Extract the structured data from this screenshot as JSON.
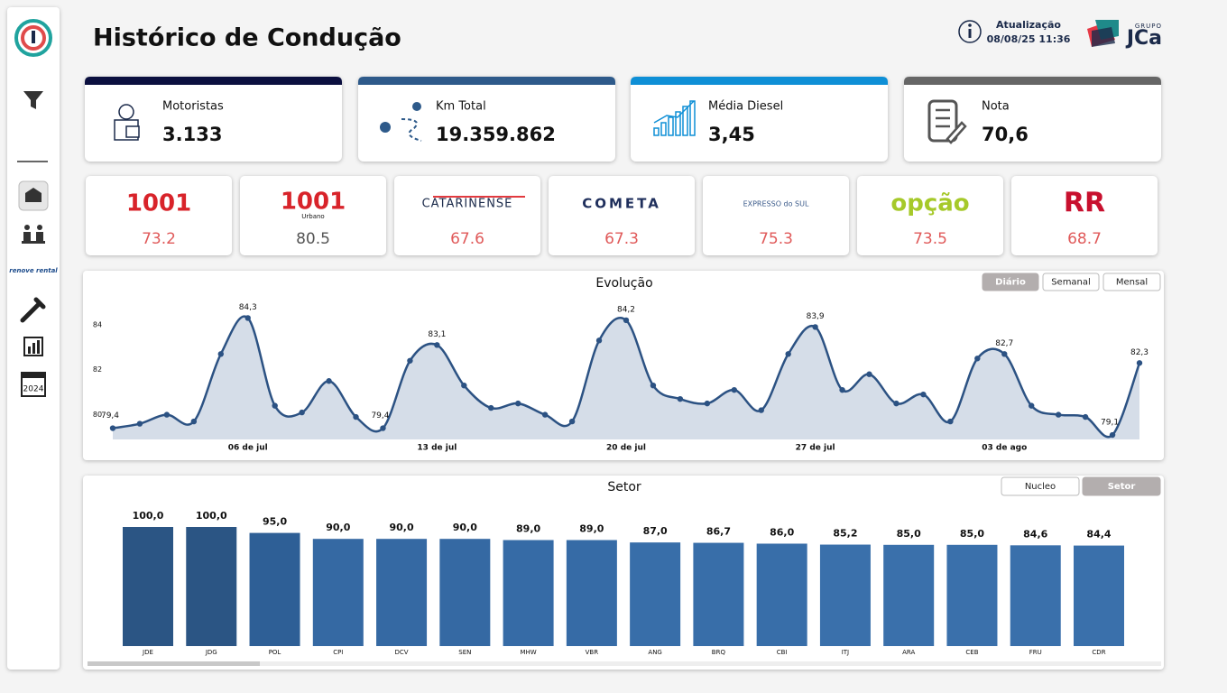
{
  "header": {
    "title": "Histórico de Condução",
    "update_label": "Atualização",
    "update_time": "08/08/25 11:36",
    "logo_small": "GRUPO",
    "logo": "JCa"
  },
  "sidebar": {
    "nav_text": "renove rental"
  },
  "kpis": [
    {
      "label": "Motoristas",
      "value": "3.133",
      "color": "#0b0f3f"
    },
    {
      "label": "Km Total",
      "value": "19.359.862",
      "color": "#2e5a8a"
    },
    {
      "label": "Média Diesel",
      "value": "3,45",
      "color": "#0e8fd6"
    },
    {
      "label": "Nota",
      "value": "70,6",
      "color": "#666666"
    }
  ],
  "brands": [
    {
      "name": "1001",
      "score": 73.2,
      "logo_color": "#d8232a",
      "score_color": "#e05a5a"
    },
    {
      "name": "1001",
      "sub": "Urbano",
      "score": 80.5,
      "logo_color": "#d8232a",
      "score_color": "#555555"
    },
    {
      "name": "CATARINENSE",
      "score": 67.6,
      "logo_color": "#1b2a4a",
      "score_color": "#e05a5a"
    },
    {
      "name": "COMETA",
      "score": 67.3,
      "logo_color": "#1f2f5c",
      "score_color": "#e05a5a"
    },
    {
      "name": "EXPRESSO do SUL",
      "score": 75.3,
      "logo_color": "#3a5a8a",
      "score_color": "#e05a5a"
    },
    {
      "name": "opção",
      "score": 73.5,
      "logo_color": "#a6c92a",
      "score_color": "#e05a5a"
    },
    {
      "name": "RR",
      "score": 68.7,
      "logo_color": "#c8102e",
      "score_color": "#e05a5a"
    }
  ],
  "chart_data": [
    {
      "type": "line",
      "title": "Evolução",
      "categories": [
        null,
        null,
        null,
        null,
        null,
        "06 de jul",
        null,
        null,
        null,
        null,
        null,
        null,
        "13 de jul",
        null,
        null,
        null,
        null,
        null,
        null,
        "20 de jul",
        null,
        null,
        null,
        null,
        null,
        null,
        "27 de jul",
        null,
        null,
        null,
        null,
        null,
        null,
        "03 de ago",
        null,
        null,
        null,
        null,
        null
      ],
      "values": [
        79.4,
        79.6,
        80.0,
        79.7,
        82.7,
        84.3,
        80.4,
        80.1,
        81.5,
        79.9,
        79.4,
        82.4,
        83.1,
        81.3,
        80.3,
        80.5,
        80.0,
        79.7,
        83.3,
        84.2,
        81.3,
        80.7,
        80.5,
        81.1,
        80.2,
        82.7,
        83.9,
        81.1,
        81.8,
        80.5,
        80.9,
        79.7,
        82.5,
        82.7,
        80.4,
        80.0,
        79.9,
        79.1,
        82.3
      ],
      "value_labels": [
        "79,4",
        null,
        null,
        null,
        null,
        "84,3",
        null,
        null,
        null,
        null,
        "79,4",
        null,
        "83,1",
        null,
        null,
        null,
        null,
        null,
        null,
        "84,2",
        null,
        null,
        null,
        null,
        null,
        null,
        "83,9",
        null,
        null,
        null,
        null,
        null,
        null,
        "82,7",
        null,
        null,
        null,
        "79,1",
        "82,3"
      ],
      "color": "#2c5283",
      "fill": "#d5dde8",
      "ylim": [
        78.9,
        85.2
      ],
      "yticks": [
        80,
        82,
        84
      ],
      "toggles": [
        "Diário",
        "Semanal",
        "Mensal"
      ],
      "active_toggle": 0
    },
    {
      "type": "bar",
      "title": "Setor",
      "categories": [
        "JDE",
        "JDG",
        "POL",
        "CPI",
        "DCV",
        "SEN",
        "MHW",
        "VBR",
        "ANG",
        "BRQ",
        "CBI",
        "ITJ",
        "ARA",
        "CEB",
        "FRU",
        "CDR"
      ],
      "values": [
        100.0,
        100.0,
        95.0,
        90.0,
        90.0,
        90.0,
        89.0,
        89.0,
        87.0,
        86.7,
        86.0,
        85.2,
        85.0,
        85.0,
        84.6,
        84.4
      ],
      "value_labels": [
        "100,0",
        "100,0",
        "95,0",
        "90,0",
        "90,0",
        "90,0",
        "89,0",
        "89,0",
        "87,0",
        "86,7",
        "86,0",
        "85,2",
        "85,0",
        "85,0",
        "84,6",
        "84,4"
      ],
      "colors": [
        "#2b5584",
        "#2b5584",
        "#2e5f96",
        "#3569a3",
        "#3569a3",
        "#3569a3",
        "#366ba6",
        "#366ba6",
        "#386ea9",
        "#386ea9",
        "#386ea9",
        "#3a70ab",
        "#3a70ab",
        "#3a70ab",
        "#3a70ab",
        "#3a70ab"
      ],
      "ylim": [
        0,
        100
      ],
      "toggles": [
        "Nucleo",
        "Setor"
      ],
      "active_toggle": 1
    }
  ]
}
